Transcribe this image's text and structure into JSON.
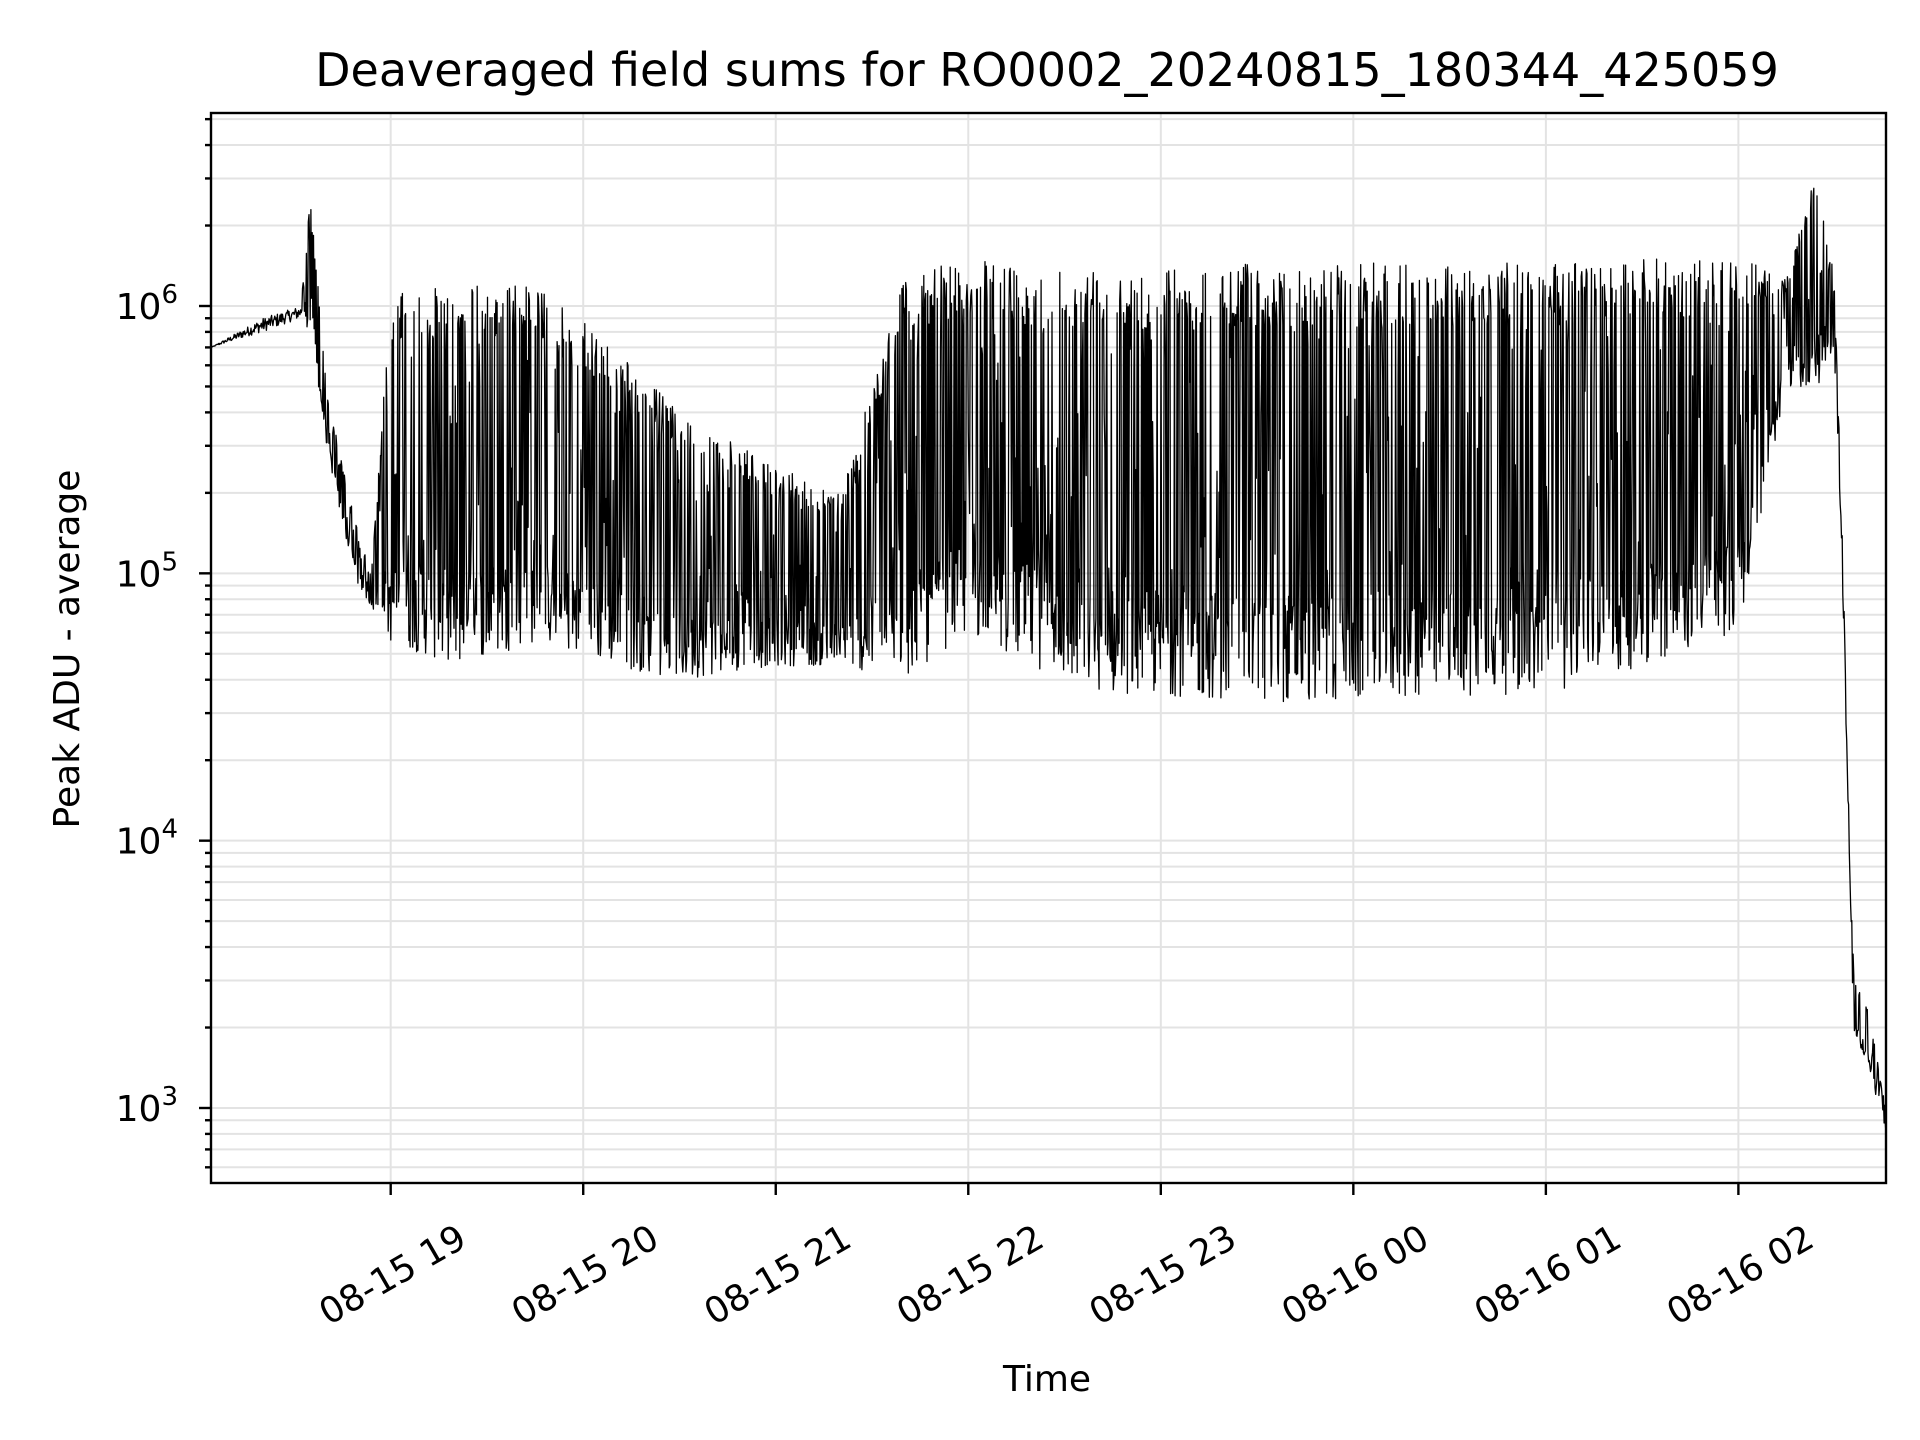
{
  "chart_data": {
    "type": "line",
    "title": "Deaveraged field sums for RO0002_20240815_180344_425059",
    "xlabel": "Time",
    "ylabel": "Peak ADU - average",
    "yscale": "log",
    "ylim": [
      550,
      5200000
    ],
    "xlim": [
      "2024-08-15 18:04",
      "2024-08-16 02:46"
    ],
    "grid": true,
    "legend": "none",
    "line_color": "#000000",
    "x_ticks": [
      "08-15 19",
      "08-15 20",
      "08-15 21",
      "08-15 22",
      "08-15 23",
      "08-16 00",
      "08-16 01",
      "08-16 02"
    ],
    "y_ticks": [
      {
        "base": "10",
        "exp": "3",
        "value": 1000
      },
      {
        "base": "10",
        "exp": "4",
        "value": 10000
      },
      {
        "base": "10",
        "exp": "5",
        "value": 100000
      },
      {
        "base": "10",
        "exp": "6",
        "value": 1000000
      }
    ],
    "series": [
      {
        "note_points": "upper envelope / lower envelope of the dense oscillating signal, time vs value",
        "x": [
          "2024-08-15 18:04",
          "2024-08-15 18:20",
          "2024-08-15 18:32",
          "2024-08-15 18:35",
          "2024-08-15 18:40",
          "2024-08-15 18:45",
          "2024-08-15 18:50",
          "2024-08-15 18:54",
          "2024-08-15 19:00",
          "2024-08-15 19:20",
          "2024-08-15 19:45",
          "2024-08-15 20:10",
          "2024-08-15 20:30",
          "2024-08-15 21:00",
          "2024-08-15 21:20",
          "2024-08-15 21:40",
          "2024-08-15 22:00",
          "2024-08-15 22:20",
          "2024-08-15 22:30",
          "2024-08-15 22:45",
          "2024-08-15 23:00",
          "2024-08-15 23:30",
          "2024-08-16 00:00",
          "2024-08-16 00:30",
          "2024-08-16 01:00",
          "2024-08-16 01:30",
          "2024-08-16 02:00",
          "2024-08-16 02:15",
          "2024-08-16 02:25",
          "2024-08-16 02:30",
          "2024-08-16 02:32",
          "2024-08-16 02:36",
          "2024-08-16 02:40",
          "2024-08-16 02:46"
        ],
        "y_high": [
          700000,
          900000,
          1000000,
          2600000,
          500000,
          250000,
          140000,
          100000,
          1100000,
          1200000,
          1200000,
          700000,
          400000,
          250000,
          200000,
          1300000,
          1500000,
          1400000,
          1400000,
          1450000,
          1400000,
          1450000,
          1450000,
          1450000,
          1450000,
          1500000,
          1500000,
          1300000,
          3400000,
          1200000,
          200000,
          3000,
          2500,
          1000
        ],
        "y_low": [
          700000,
          800000,
          900000,
          800000,
          300000,
          150000,
          90000,
          75000,
          55000,
          45000,
          55000,
          45000,
          40000,
          45000,
          45000,
          40000,
          60000,
          45000,
          40000,
          35000,
          35000,
          33000,
          33000,
          35000,
          35000,
          45000,
          60000,
          500000,
          500000,
          600000,
          150000,
          1800,
          1500,
          800
        ]
      }
    ]
  }
}
